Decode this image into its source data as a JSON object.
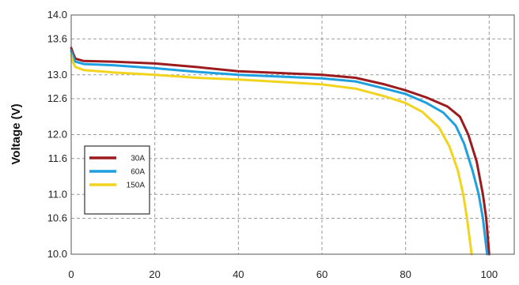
{
  "chart_data": {
    "type": "line",
    "title": "",
    "xlabel": "",
    "ylabel": "Voltage (V)",
    "xlim": [
      0,
      106
    ],
    "ylim": [
      10.0,
      14.0
    ],
    "x_ticks": [
      "0",
      "20",
      "40",
      "60",
      "80",
      "100"
    ],
    "y_ticks": [
      "10.0",
      "10.6",
      "11.0",
      "11.6",
      "12.0",
      "12.6",
      "13.0",
      "13.6",
      "14.0"
    ],
    "grid": true,
    "legend": "bottom-left",
    "series": [
      {
        "name": "30A",
        "color": "#9b1b1f",
        "points": [
          [
            0,
            13.45
          ],
          [
            0.5,
            13.35
          ],
          [
            1,
            13.27
          ],
          [
            3,
            13.23
          ],
          [
            10,
            13.22
          ],
          [
            20,
            13.19
          ],
          [
            30,
            13.13
          ],
          [
            40,
            13.06
          ],
          [
            50,
            13.03
          ],
          [
            60,
            13.0
          ],
          [
            68,
            12.95
          ],
          [
            75,
            12.84
          ],
          [
            80,
            12.74
          ],
          [
            85,
            12.62
          ],
          [
            90,
            12.47
          ],
          [
            93,
            12.3
          ],
          [
            95,
            12.0
          ],
          [
            97,
            11.55
          ],
          [
            98.5,
            11.0
          ],
          [
            99.3,
            10.6
          ],
          [
            100,
            10.0
          ]
        ]
      },
      {
        "name": "60A",
        "color": "#1ea0e0",
        "points": [
          [
            0,
            13.4
          ],
          [
            0.5,
            13.3
          ],
          [
            1,
            13.22
          ],
          [
            3,
            13.18
          ],
          [
            10,
            13.16
          ],
          [
            20,
            13.11
          ],
          [
            30,
            13.05
          ],
          [
            40,
            13.0
          ],
          [
            50,
            12.97
          ],
          [
            60,
            12.94
          ],
          [
            68,
            12.89
          ],
          [
            75,
            12.77
          ],
          [
            80,
            12.68
          ],
          [
            85,
            12.53
          ],
          [
            89,
            12.37
          ],
          [
            92,
            12.15
          ],
          [
            94,
            11.85
          ],
          [
            96,
            11.4
          ],
          [
            97.5,
            11.0
          ],
          [
            98.5,
            10.6
          ],
          [
            99.5,
            10.0
          ]
        ]
      },
      {
        "name": "150A",
        "color": "#f2d41e",
        "points": [
          [
            0,
            13.33
          ],
          [
            0.5,
            13.2
          ],
          [
            1,
            13.13
          ],
          [
            3,
            13.08
          ],
          [
            10,
            13.04
          ],
          [
            20,
            13.0
          ],
          [
            30,
            12.95
          ],
          [
            40,
            12.92
          ],
          [
            50,
            12.88
          ],
          [
            60,
            12.84
          ],
          [
            68,
            12.77
          ],
          [
            75,
            12.64
          ],
          [
            80,
            12.53
          ],
          [
            84,
            12.38
          ],
          [
            88,
            12.12
          ],
          [
            90.5,
            11.8
          ],
          [
            92.5,
            11.4
          ],
          [
            93.8,
            11.0
          ],
          [
            94.7,
            10.6
          ],
          [
            95.8,
            10.0
          ]
        ]
      }
    ]
  }
}
